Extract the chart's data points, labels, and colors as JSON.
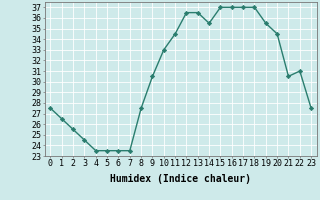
{
  "x": [
    0,
    1,
    2,
    3,
    4,
    5,
    6,
    7,
    8,
    9,
    10,
    11,
    12,
    13,
    14,
    15,
    16,
    17,
    18,
    19,
    20,
    21,
    22,
    23
  ],
  "y": [
    27.5,
    26.5,
    25.5,
    24.5,
    23.5,
    23.5,
    23.5,
    23.5,
    27.5,
    30.5,
    33.0,
    34.5,
    36.5,
    36.5,
    35.5,
    37.0,
    37.0,
    37.0,
    37.0,
    35.5,
    34.5,
    30.5,
    31.0,
    27.5
  ],
  "xlim": [
    -0.5,
    23.5
  ],
  "ylim": [
    23,
    37.5
  ],
  "yticks": [
    23,
    24,
    25,
    26,
    27,
    28,
    29,
    30,
    31,
    32,
    33,
    34,
    35,
    36,
    37
  ],
  "xticks": [
    0,
    1,
    2,
    3,
    4,
    5,
    6,
    7,
    8,
    9,
    10,
    11,
    12,
    13,
    14,
    15,
    16,
    17,
    18,
    19,
    20,
    21,
    22,
    23
  ],
  "xlabel": "Humidex (Indice chaleur)",
  "line_color": "#2a7d6e",
  "marker": "D",
  "marker_size": 2.2,
  "bg_color": "#ceeaea",
  "grid_color": "#ffffff",
  "xlabel_fontsize": 7,
  "tick_fontsize": 6,
  "line_width": 1.0
}
